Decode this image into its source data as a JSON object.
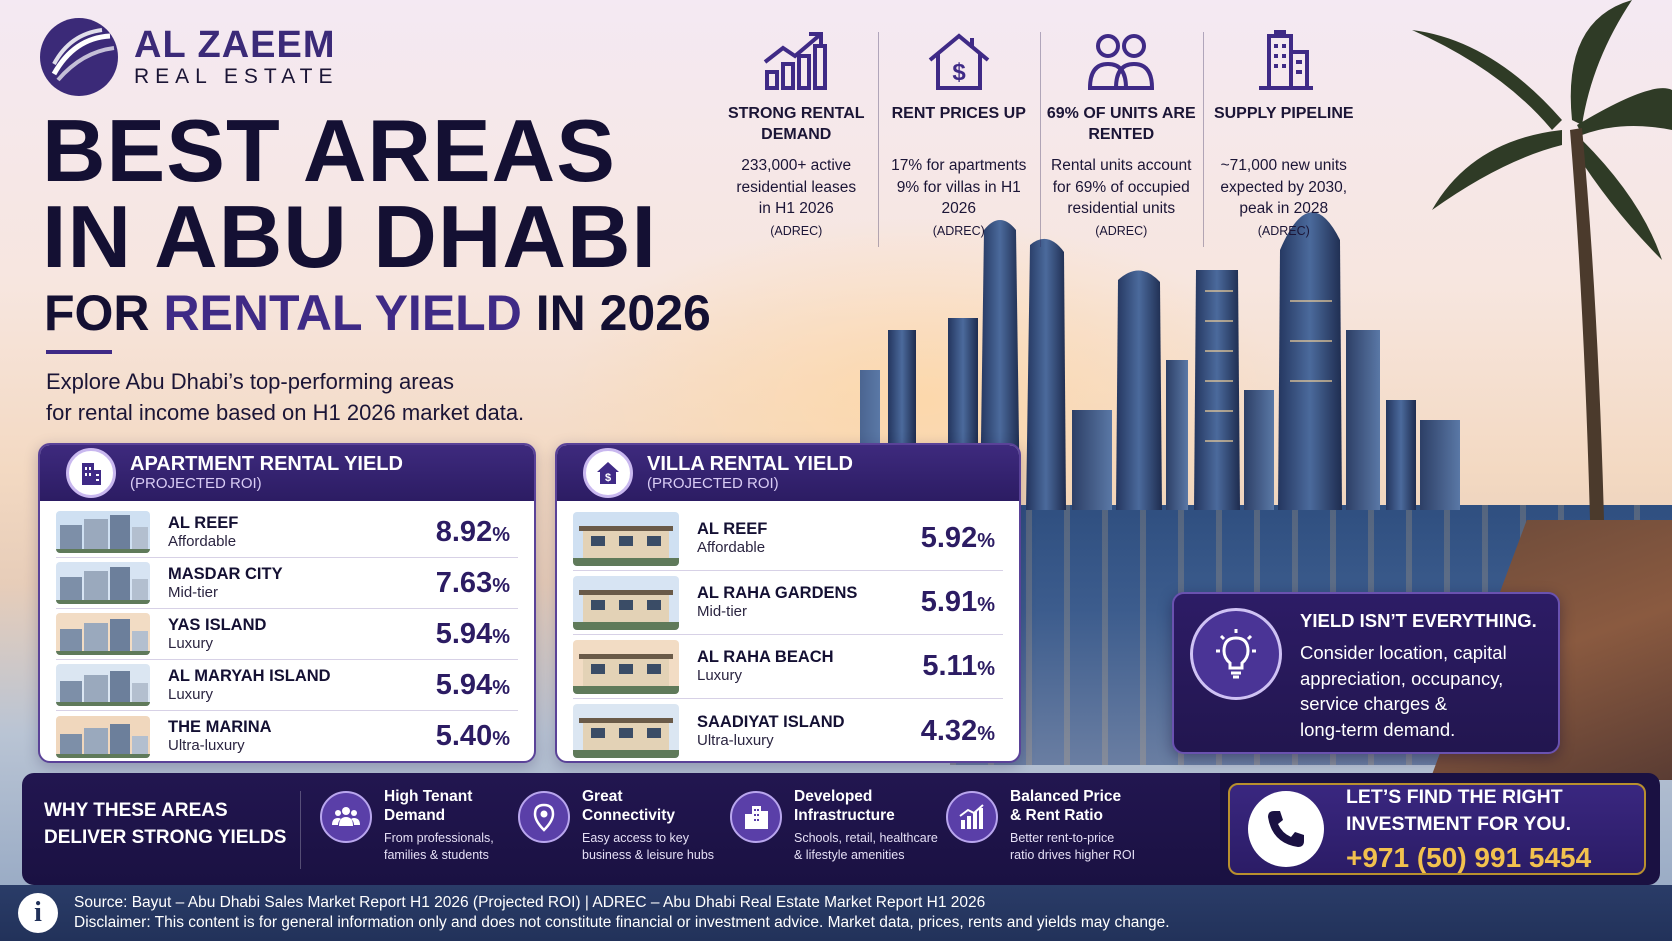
{
  "brand": {
    "name": "AL ZAEEM",
    "tagline": "REAL ESTATE"
  },
  "headline": {
    "line1": "BEST AREAS",
    "line2": "IN ABU DHABI",
    "line3_prefix": "FOR",
    "line3_accent": "RENTAL YIELD",
    "line3_suffix": "IN 2026"
  },
  "intro": {
    "line1": "Explore Abu Dhabi’s top-performing areas",
    "line2": "for rental income based on H1 2026 market data."
  },
  "stats": [
    {
      "icon": "growth-chart-icon",
      "title": "STRONG RENTAL DEMAND",
      "body": "233,000+ active\nresidential leases\nin H1 2026",
      "source": "(ADREC)"
    },
    {
      "icon": "house-dollar-icon",
      "title": "RENT PRICES UP",
      "body": "17% for apartments\n9% for villas in H1 2026",
      "source": "(ADREC)"
    },
    {
      "icon": "people-icon",
      "title": "69% OF UNITS ARE RENTED",
      "body": "Rental units account\nfor 69% of occupied\nresidential units",
      "source": "(ADREC)"
    },
    {
      "icon": "building-icon",
      "title": "SUPPLY PIPELINE",
      "body": "~71,000 new units\nexpected by 2030,\npeak in 2028",
      "source": "(ADREC)"
    }
  ],
  "apartment": {
    "icon": "apartment-building-icon",
    "title": "APARTMENT RENTAL YIELD",
    "subtitle": "(PROJECTED ROI)",
    "rows": [
      {
        "name": "AL REEF",
        "tier": "Affordable",
        "value": "8.92",
        "unit": "%"
      },
      {
        "name": "MASDAR CITY",
        "tier": "Mid-tier",
        "value": "7.63",
        "unit": "%"
      },
      {
        "name": "YAS ISLAND",
        "tier": "Luxury",
        "value": "5.94",
        "unit": "%"
      },
      {
        "name": "AL MARYAH ISLAND",
        "tier": "Luxury",
        "value": "5.94",
        "unit": "%"
      },
      {
        "name": "THE MARINA",
        "tier": "Ultra-luxury",
        "value": "5.40",
        "unit": "%"
      }
    ]
  },
  "villa": {
    "icon": "house-dollar-icon",
    "title": "VILLA RENTAL YIELD",
    "subtitle": "(PROJECTED ROI)",
    "rows": [
      {
        "name": "AL REEF",
        "tier": "Affordable",
        "value": "5.92",
        "unit": "%"
      },
      {
        "name": "AL RAHA GARDENS",
        "tier": "Mid-tier",
        "value": "5.91",
        "unit": "%"
      },
      {
        "name": "AL RAHA BEACH",
        "tier": "Luxury",
        "value": "5.11",
        "unit": "%"
      },
      {
        "name": "SAADIYAT ISLAND",
        "tier": "Ultra-luxury",
        "value": "4.32",
        "unit": "%"
      }
    ]
  },
  "note": {
    "icon": "lightbulb-icon",
    "title": "YIELD ISN’T EVERYTHING.",
    "body": "Consider location, capital\nappreciation, occupancy,\nservice charges &\nlong-term demand."
  },
  "why": {
    "heading": "WHY THESE AREAS\nDELIVER STRONG YIELDS",
    "features": [
      {
        "icon": "people-group-icon",
        "title": "High Tenant\nDemand",
        "body": "From professionals,\nfamilies & students"
      },
      {
        "icon": "location-pin-icon",
        "title": "Great\nConnectivity",
        "body": "Easy access to key\nbusiness & leisure hubs"
      },
      {
        "icon": "city-buildings-icon",
        "title": "Developed\nInfrastructure",
        "body": "Schools, retail, healthcare\n& lifestyle amenities"
      },
      {
        "icon": "bar-chart-icon",
        "title": "Balanced Price\n& Rent Ratio",
        "body": "Better rent-to-price\nratio drives higher ROI"
      }
    ]
  },
  "cta": {
    "title": "LET’S FIND THE RIGHT\nINVESTMENT FOR YOU.",
    "phone": "+971 (50) 991 5454",
    "icon": "phone-icon"
  },
  "footer": {
    "source": "Source: Bayut – Abu Dhabi Sales Market Report H1 2026 (Projected ROI)  |  ADREC – Abu Dhabi Real Estate Market Report H1 2026",
    "disclaimer": "Disclaimer: This content is for general information only and does not constitute financial or investment advice. Market data, prices, rents and yields may change.",
    "icon": "info-icon"
  },
  "colors": {
    "brand_purple": "#3f2a86",
    "navy": "#1a1142",
    "gold": "#f2c14e"
  }
}
